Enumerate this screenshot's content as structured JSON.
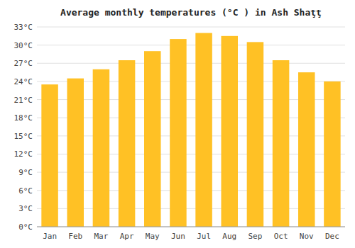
{
  "chart_data": {
    "type": "bar",
    "title": "Average monthly temperatures (°C ) in Ash Shaţţ",
    "categories": [
      "Jan",
      "Feb",
      "Mar",
      "Apr",
      "May",
      "Jun",
      "Jul",
      "Aug",
      "Sep",
      "Oct",
      "Nov",
      "Dec"
    ],
    "values": [
      23.5,
      24.5,
      26.0,
      27.5,
      29.0,
      31.0,
      32.0,
      31.5,
      30.5,
      27.5,
      25.5,
      24.0
    ],
    "color": "#FFC125",
    "ylim": [
      0,
      33
    ],
    "yticks": [
      {
        "value": 0,
        "label": "0°C"
      },
      {
        "value": 3,
        "label": "3°C"
      },
      {
        "value": 6,
        "label": "6°C"
      },
      {
        "value": 9,
        "label": "9°C"
      },
      {
        "value": 12,
        "label": "12°C"
      },
      {
        "value": 15,
        "label": "15°C"
      },
      {
        "value": 18,
        "label": "18°C"
      },
      {
        "value": 21,
        "label": "21°C"
      },
      {
        "value": 24,
        "label": "24°C"
      },
      {
        "value": 27,
        "label": "27°C"
      },
      {
        "value": 30,
        "label": "30°C"
      },
      {
        "value": 33,
        "label": "33°C"
      }
    ],
    "grid": true
  }
}
